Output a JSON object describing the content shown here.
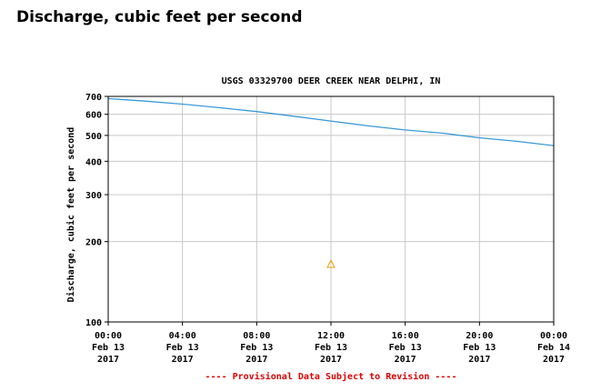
{
  "page": {
    "heading": "Discharge, cubic feet per second"
  },
  "chart_data": {
    "type": "line",
    "title": "USGS 03329700 DEER CREEK NEAR DELPHI, IN",
    "ylabel": "Discharge, cubic feet per second",
    "xlabel": "",
    "yscale": "log",
    "ylim": [
      100,
      700
    ],
    "xlim": [
      "2017-02-13T00:00",
      "2017-02-14T00:00"
    ],
    "y_ticks": [
      100,
      200,
      300,
      400,
      500,
      600,
      700
    ],
    "x_ticks": [
      {
        "t": "2017-02-13T00:00",
        "label": [
          "00:00",
          "Feb 13",
          "2017"
        ]
      },
      {
        "t": "2017-02-13T04:00",
        "label": [
          "04:00",
          "Feb 13",
          "2017"
        ]
      },
      {
        "t": "2017-02-13T08:00",
        "label": [
          "08:00",
          "Feb 13",
          "2017"
        ]
      },
      {
        "t": "2017-02-13T12:00",
        "label": [
          "12:00",
          "Feb 13",
          "2017"
        ]
      },
      {
        "t": "2017-02-13T16:00",
        "label": [
          "16:00",
          "Feb 13",
          "2017"
        ]
      },
      {
        "t": "2017-02-13T20:00",
        "label": [
          "20:00",
          "Feb 13",
          "2017"
        ]
      },
      {
        "t": "2017-02-14T00:00",
        "label": [
          "00:00",
          "Feb 14",
          "2017"
        ]
      }
    ],
    "grid": true,
    "series": [
      {
        "color": "#3a9ad9",
        "points": [
          {
            "x": "2017-02-13T00:00",
            "y": 687
          },
          {
            "x": "2017-02-13T02:00",
            "y": 672
          },
          {
            "x": "2017-02-13T04:00",
            "y": 655
          },
          {
            "x": "2017-02-13T06:00",
            "y": 635
          },
          {
            "x": "2017-02-13T08:00",
            "y": 614
          },
          {
            "x": "2017-02-13T10:00",
            "y": 590
          },
          {
            "x": "2017-02-13T12:00",
            "y": 566
          },
          {
            "x": "2017-02-13T14:00",
            "y": 543
          },
          {
            "x": "2017-02-13T16:00",
            "y": 524
          },
          {
            "x": "2017-02-13T18:00",
            "y": 510
          },
          {
            "x": "2017-02-13T20:00",
            "y": 490
          },
          {
            "x": "2017-02-13T22:00",
            "y": 475
          },
          {
            "x": "2017-02-14T00:00",
            "y": 458
          }
        ]
      }
    ],
    "marker": {
      "symbol": "triangle",
      "x": "2017-02-13T12:00",
      "color": "#f0a000"
    },
    "footnote": "---- Provisional Data Subject to Revision ----",
    "footnote_color": "#dd0000"
  }
}
